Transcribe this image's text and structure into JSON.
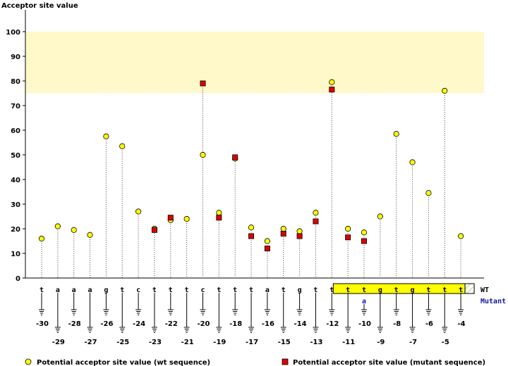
{
  "chart_data": {
    "type": "scatter",
    "title": "Acceptor site value",
    "ylabel": "Acceptor site value",
    "ylim": [
      0,
      100
    ],
    "yticks": [
      0,
      10,
      20,
      30,
      40,
      50,
      60,
      70,
      80,
      90,
      100
    ],
    "highlight_band": [
      75,
      100
    ],
    "positions": [
      -30,
      -29,
      -28,
      -27,
      -26,
      -25,
      -24,
      -23,
      -22,
      -21,
      -20,
      -19,
      -18,
      -17,
      -16,
      -15,
      -14,
      -13,
      -12,
      -11,
      -10,
      -9,
      -8,
      -7,
      -6,
      -5,
      -4
    ],
    "wt_sequence": [
      "t",
      "a",
      "a",
      "a",
      "g",
      "t",
      "c",
      "t",
      "t",
      "t",
      "c",
      "t",
      "t",
      "t",
      "a",
      "t",
      "g",
      "t",
      "t",
      "t",
      "t",
      "g",
      "t",
      "g",
      "t",
      "t",
      "t"
    ],
    "mutant_sequence": [
      "",
      "",
      "",
      "",
      "",
      "",
      "",
      "",
      "",
      "",
      "",
      "",
      "",
      "",
      "",
      "",
      "",
      "",
      "",
      "",
      "a",
      "",
      "",
      "",
      "",
      "",
      ""
    ],
    "series": [
      {
        "name": "Potential acceptor site value (wt sequence)",
        "color": "#ffff00",
        "marker": "circle",
        "values": [
          16,
          21,
          19.5,
          17.5,
          57.5,
          53.5,
          27,
          20,
          23.5,
          24,
          50,
          26.5,
          48.5,
          20.5,
          15,
          20,
          19,
          26.5,
          79.5,
          20,
          18.5,
          25,
          58.5,
          47,
          34.5,
          76,
          17
        ]
      },
      {
        "name": "Potential acceptor site value (mutant sequence)",
        "color": "#dd0000",
        "marker": "square",
        "values": [
          null,
          null,
          null,
          null,
          null,
          null,
          null,
          19.5,
          24.5,
          null,
          79,
          24.5,
          49,
          17,
          12,
          18,
          17,
          23,
          76.5,
          16.5,
          15,
          null,
          null,
          null,
          null,
          null,
          null
        ]
      }
    ],
    "boxed_region": [
      -12,
      -4
    ],
    "row_labels": {
      "wt": "WT",
      "mutant": "Mutant"
    }
  },
  "colors": {
    "band_fill": "#fff8c8",
    "box_fill": "#ffff00",
    "mutant_label": "#1a1aa0"
  }
}
